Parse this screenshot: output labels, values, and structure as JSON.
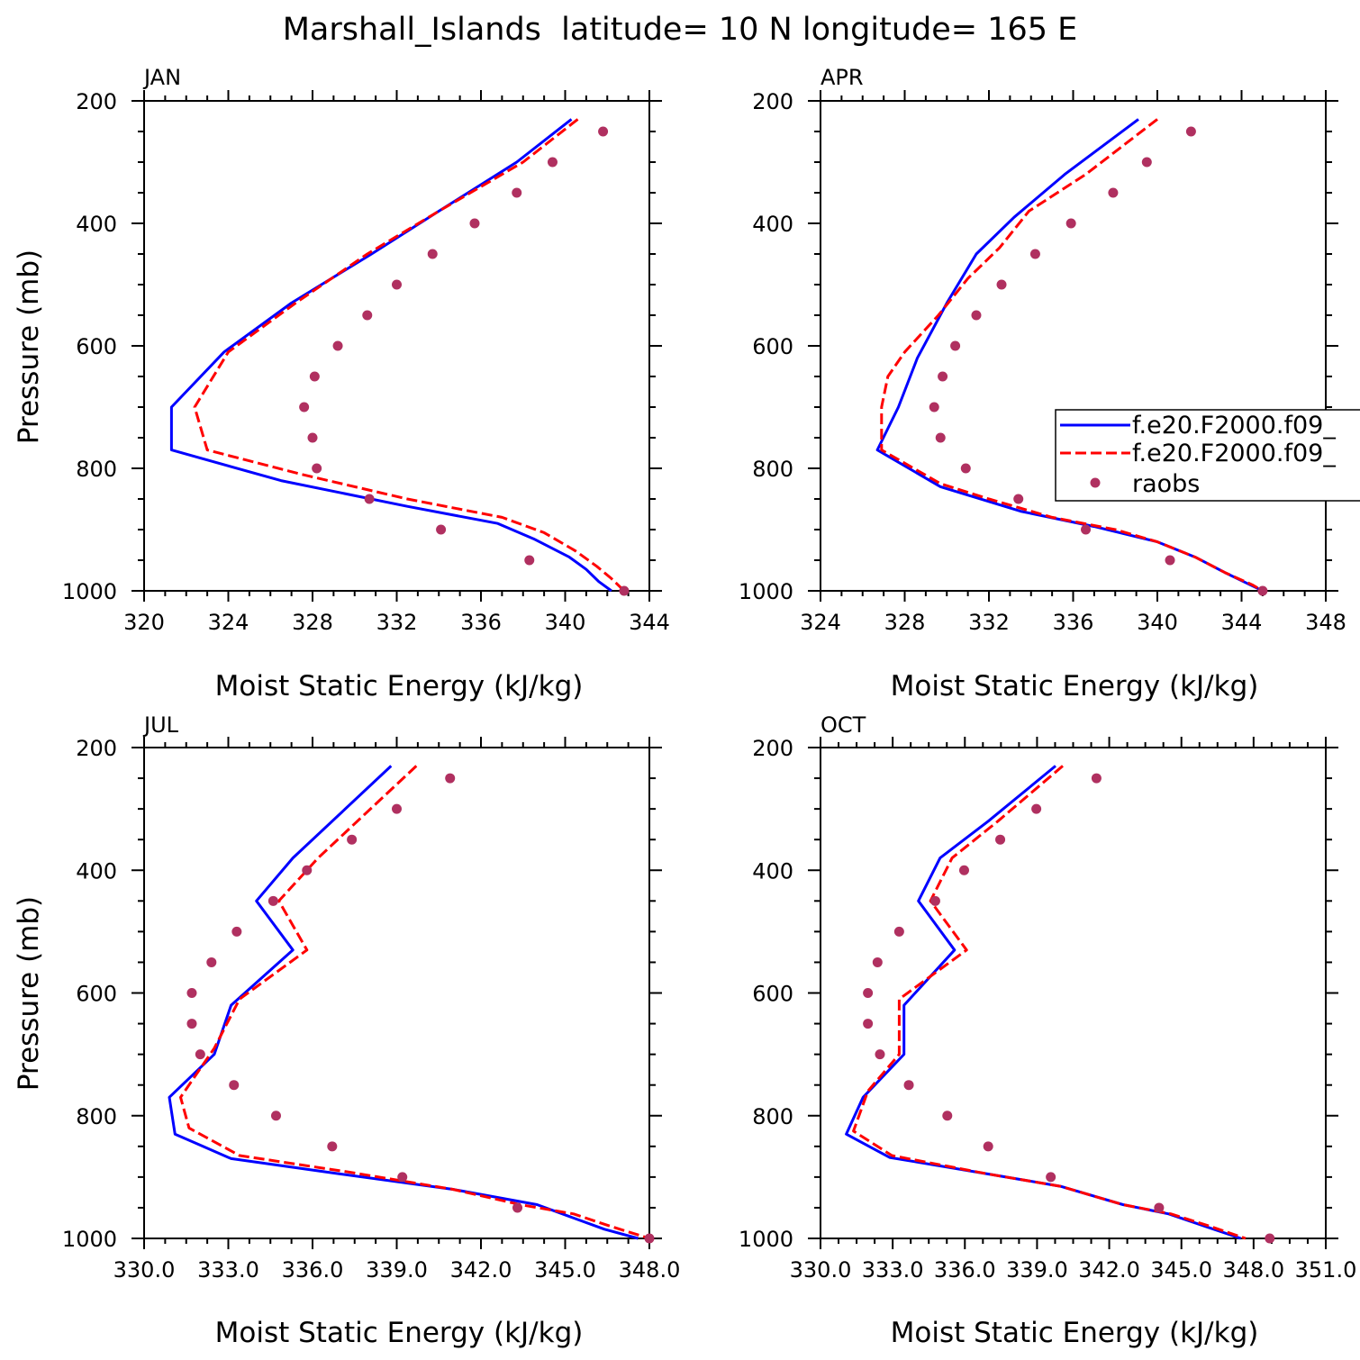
{
  "figure_title": "Marshall_Islands  latitude= 10 N longitude= 165 E",
  "legend": {
    "entries": [
      {
        "name": "f.e20.F2000.f09_",
        "style": "solid",
        "color": "#0000ff"
      },
      {
        "name": "f.e20.F2000.f09_",
        "style": "dashed",
        "color": "#ff0000"
      },
      {
        "name": "raobs",
        "style": "dots",
        "color": "#b03060"
      }
    ]
  },
  "chart_data": [
    {
      "type": "line",
      "panel": "JAN",
      "title": "JAN",
      "xlabel": "Moist Static Energy (kJ/kg)",
      "ylabel": "Pressure (mb)",
      "xlim": [
        320,
        344
      ],
      "ylim": [
        1000,
        200
      ],
      "y_reversed": true,
      "xticks": [
        320,
        324,
        328,
        332,
        336,
        340,
        344
      ],
      "xtick_labels": [
        "320",
        "324",
        "328",
        "332",
        "336",
        "340",
        "344"
      ],
      "yticks": [
        200,
        400,
        600,
        800,
        1000
      ],
      "ytick_labels": [
        "200",
        "400",
        "600",
        "800",
        "1000"
      ],
      "series": [
        {
          "name": "f.e20.F2000.f09_",
          "style": "solid",
          "color": "#0000ff",
          "points": [
            [
              340.3,
              230
            ],
            [
              337.7,
              300
            ],
            [
              334.0,
              380
            ],
            [
              330.8,
              450
            ],
            [
              327.0,
              530
            ],
            [
              323.8,
              610
            ],
            [
              321.3,
              700
            ],
            [
              321.3,
              770
            ],
            [
              326.5,
              820
            ],
            [
              332.5,
              862
            ],
            [
              336.8,
              890
            ],
            [
              338.5,
              915
            ],
            [
              340.2,
              945
            ],
            [
              341.0,
              965
            ],
            [
              341.6,
              985
            ],
            [
              342.2,
              1000
            ]
          ]
        },
        {
          "name": "f.e20.F2000.f09_",
          "style": "dashed",
          "color": "#ff0000",
          "points": [
            [
              340.6,
              230
            ],
            [
              338.0,
              300
            ],
            [
              334.0,
              380
            ],
            [
              330.6,
              450
            ],
            [
              327.2,
              530
            ],
            [
              324.0,
              610
            ],
            [
              322.4,
              700
            ],
            [
              323.0,
              770
            ],
            [
              327.5,
              810
            ],
            [
              332.5,
              850
            ],
            [
              337.0,
              880
            ],
            [
              339.0,
              905
            ],
            [
              340.5,
              935
            ],
            [
              341.5,
              960
            ],
            [
              342.2,
              980
            ],
            [
              342.8,
              1000
            ]
          ]
        },
        {
          "name": "raobs",
          "style": "dots",
          "color": "#b03060",
          "points": [
            [
              341.8,
              250
            ],
            [
              339.4,
              300
            ],
            [
              337.7,
              350
            ],
            [
              335.7,
              400
            ],
            [
              333.7,
              450
            ],
            [
              332.0,
              500
            ],
            [
              330.6,
              550
            ],
            [
              329.2,
              600
            ],
            [
              328.1,
              650
            ],
            [
              327.6,
              700
            ],
            [
              328.0,
              750
            ],
            [
              328.2,
              800
            ],
            [
              330.7,
              850
            ],
            [
              334.1,
              900
            ],
            [
              338.3,
              950
            ],
            [
              342.8,
              1000
            ]
          ]
        }
      ]
    },
    {
      "type": "line",
      "panel": "APR",
      "title": "APR",
      "xlabel": "Moist Static Energy (kJ/kg)",
      "ylabel": "Pressure (mb)",
      "xlim": [
        324,
        348
      ],
      "ylim": [
        1000,
        200
      ],
      "y_reversed": true,
      "xticks": [
        324,
        328,
        332,
        336,
        340,
        344,
        348
      ],
      "xtick_labels": [
        "324",
        "328",
        "332",
        "336",
        "340",
        "344",
        "348"
      ],
      "yticks": [
        200,
        400,
        600,
        800,
        1000
      ],
      "ytick_labels": [
        "200",
        "400",
        "600",
        "800",
        "1000"
      ],
      "series": [
        {
          "name": "f.e20.F2000.f09_",
          "style": "solid",
          "color": "#0000ff",
          "points": [
            [
              339.1,
              230
            ],
            [
              335.6,
              320
            ],
            [
              333.2,
              390
            ],
            [
              331.4,
              450
            ],
            [
              330.0,
              530
            ],
            [
              328.6,
              620
            ],
            [
              327.7,
              700
            ],
            [
              326.7,
              770
            ],
            [
              329.7,
              830
            ],
            [
              333.5,
              870
            ],
            [
              337.0,
              895
            ],
            [
              340.0,
              920
            ],
            [
              341.8,
              945
            ],
            [
              343.2,
              970
            ],
            [
              344.4,
              990
            ],
            [
              345.0,
              1000
            ]
          ]
        },
        {
          "name": "f.e20.F2000.f09_",
          "style": "dashed",
          "color": "#ff0000",
          "points": [
            [
              340.0,
              230
            ],
            [
              336.6,
              320
            ],
            [
              333.9,
              380
            ],
            [
              332.5,
              440
            ],
            [
              331.0,
              490
            ],
            [
              329.6,
              550
            ],
            [
              328.0,
              610
            ],
            [
              327.2,
              650
            ],
            [
              326.9,
              700
            ],
            [
              326.9,
              770
            ],
            [
              329.7,
              825
            ],
            [
              332.0,
              850
            ],
            [
              335.0,
              880
            ],
            [
              338.0,
              900
            ],
            [
              340.0,
              920
            ],
            [
              341.8,
              945
            ],
            [
              343.2,
              970
            ],
            [
              344.5,
              990
            ],
            [
              345.0,
              1000
            ]
          ]
        },
        {
          "name": "raobs",
          "style": "dots",
          "color": "#b03060",
          "points": [
            [
              341.6,
              250
            ],
            [
              339.5,
              300
            ],
            [
              337.9,
              350
            ],
            [
              335.9,
              400
            ],
            [
              334.2,
              450
            ],
            [
              332.6,
              500
            ],
            [
              331.4,
              550
            ],
            [
              330.4,
              600
            ],
            [
              329.8,
              650
            ],
            [
              329.4,
              700
            ],
            [
              329.7,
              750
            ],
            [
              330.9,
              800
            ],
            [
              333.4,
              850
            ],
            [
              336.6,
              900
            ],
            [
              340.6,
              950
            ],
            [
              345.0,
              1000
            ]
          ]
        }
      ]
    },
    {
      "type": "line",
      "panel": "JUL",
      "title": "JUL",
      "xlabel": "Moist Static Energy (kJ/kg)",
      "ylabel": "Pressure (mb)",
      "xlim": [
        330,
        348
      ],
      "ylim": [
        1000,
        200
      ],
      "y_reversed": true,
      "xticks": [
        330,
        333,
        336,
        339,
        342,
        345,
        348
      ],
      "xtick_labels": [
        "330.0",
        "333.0",
        "336.0",
        "339.0",
        "342.0",
        "345.0",
        "348.0"
      ],
      "yticks": [
        200,
        400,
        600,
        800,
        1000
      ],
      "ytick_labels": [
        "200",
        "400",
        "600",
        "800",
        "1000"
      ],
      "series": [
        {
          "name": "f.e20.F2000.f09_",
          "style": "solid",
          "color": "#0000ff",
          "points": [
            [
              338.8,
              230
            ],
            [
              335.3,
              380
            ],
            [
              334.0,
              450
            ],
            [
              335.3,
              530
            ],
            [
              333.1,
              620
            ],
            [
              332.5,
              700
            ],
            [
              330.9,
              770
            ],
            [
              331.1,
              830
            ],
            [
              333.1,
              870
            ],
            [
              337.0,
              895
            ],
            [
              341.0,
              920
            ],
            [
              344.0,
              945
            ],
            [
              345.2,
              965
            ],
            [
              346.4,
              985
            ],
            [
              347.6,
              1000
            ]
          ]
        },
        {
          "name": "f.e20.F2000.f09_",
          "style": "dashed",
          "color": "#ff0000",
          "points": [
            [
              339.7,
              230
            ],
            [
              336.2,
              380
            ],
            [
              334.8,
              450
            ],
            [
              335.8,
              530
            ],
            [
              333.4,
              610
            ],
            [
              332.5,
              690
            ],
            [
              331.3,
              770
            ],
            [
              331.6,
              820
            ],
            [
              333.4,
              865
            ],
            [
              337.3,
              892
            ],
            [
              341.0,
              920
            ],
            [
              343.4,
              945
            ],
            [
              345.3,
              960
            ],
            [
              346.6,
              980
            ],
            [
              348.0,
              1000
            ]
          ]
        },
        {
          "name": "raobs",
          "style": "dots",
          "color": "#b03060",
          "points": [
            [
              340.9,
              250
            ],
            [
              339.0,
              300
            ],
            [
              337.4,
              350
            ],
            [
              335.8,
              400
            ],
            [
              334.6,
              450
            ],
            [
              333.3,
              500
            ],
            [
              332.4,
              550
            ],
            [
              331.7,
              600
            ],
            [
              331.7,
              650
            ],
            [
              332.0,
              700
            ],
            [
              333.2,
              750
            ],
            [
              334.7,
              800
            ],
            [
              336.7,
              850
            ],
            [
              339.2,
              900
            ],
            [
              343.3,
              950
            ],
            [
              348.0,
              1000
            ]
          ]
        }
      ]
    },
    {
      "type": "line",
      "panel": "OCT",
      "title": "OCT",
      "xlabel": "Moist Static Energy (kJ/kg)",
      "ylabel": "Pressure (mb)",
      "xlim": [
        330.03,
        351.03
      ],
      "ylim": [
        1000,
        200
      ],
      "y_reversed": true,
      "xticks": [
        330.03,
        333.03,
        336.03,
        339.03,
        342.03,
        345.03,
        348.03,
        351.03
      ],
      "xtick_labels": [
        "330.0",
        "333.0",
        "336.0",
        "339.0",
        "342.0",
        "345.0",
        "348.0",
        "351.0"
      ],
      "yticks": [
        200,
        400,
        600,
        800,
        1000
      ],
      "ytick_labels": [
        "200",
        "400",
        "600",
        "800",
        "1000"
      ],
      "series": [
        {
          "name": "f.e20.F2000.f09_",
          "style": "solid",
          "color": "#0000ff",
          "points": [
            [
              339.8,
              230
            ],
            [
              337.0,
              320
            ],
            [
              335.0,
              380
            ],
            [
              334.1,
              450
            ],
            [
              335.6,
              530
            ],
            [
              333.5,
              620
            ],
            [
              333.5,
              700
            ],
            [
              331.8,
              770
            ],
            [
              331.1,
              830
            ],
            [
              332.9,
              868
            ],
            [
              337.0,
              895
            ],
            [
              340.0,
              915
            ],
            [
              342.6,
              945
            ],
            [
              344.5,
              960
            ],
            [
              346.0,
              980
            ],
            [
              347.5,
              1000
            ]
          ]
        },
        {
          "name": "f.e20.F2000.f09_",
          "style": "dashed",
          "color": "#ff0000",
          "points": [
            [
              340.1,
              230
            ],
            [
              337.4,
              320
            ],
            [
              335.5,
              380
            ],
            [
              334.6,
              450
            ],
            [
              336.1,
              530
            ],
            [
              333.3,
              610
            ],
            [
              333.3,
              700
            ],
            [
              332.0,
              760
            ],
            [
              331.4,
              825
            ],
            [
              333.0,
              865
            ],
            [
              337.0,
              895
            ],
            [
              340.0,
              915
            ],
            [
              342.6,
              945
            ],
            [
              344.6,
              960
            ],
            [
              346.2,
              980
            ],
            [
              347.7,
              1000
            ]
          ]
        },
        {
          "name": "raobs",
          "style": "dots",
          "color": "#b03060",
          "points": [
            [
              341.5,
              250
            ],
            [
              339.0,
              300
            ],
            [
              337.5,
              350
            ],
            [
              336.0,
              400
            ],
            [
              334.8,
              450
            ],
            [
              333.3,
              500
            ],
            [
              332.4,
              550
            ],
            [
              332.0,
              600
            ],
            [
              332.0,
              650
            ],
            [
              332.5,
              700
            ],
            [
              333.7,
              750
            ],
            [
              335.3,
              800
            ],
            [
              337.0,
              850
            ],
            [
              339.6,
              900
            ],
            [
              344.1,
              950
            ],
            [
              348.7,
              1000
            ]
          ]
        }
      ]
    }
  ]
}
